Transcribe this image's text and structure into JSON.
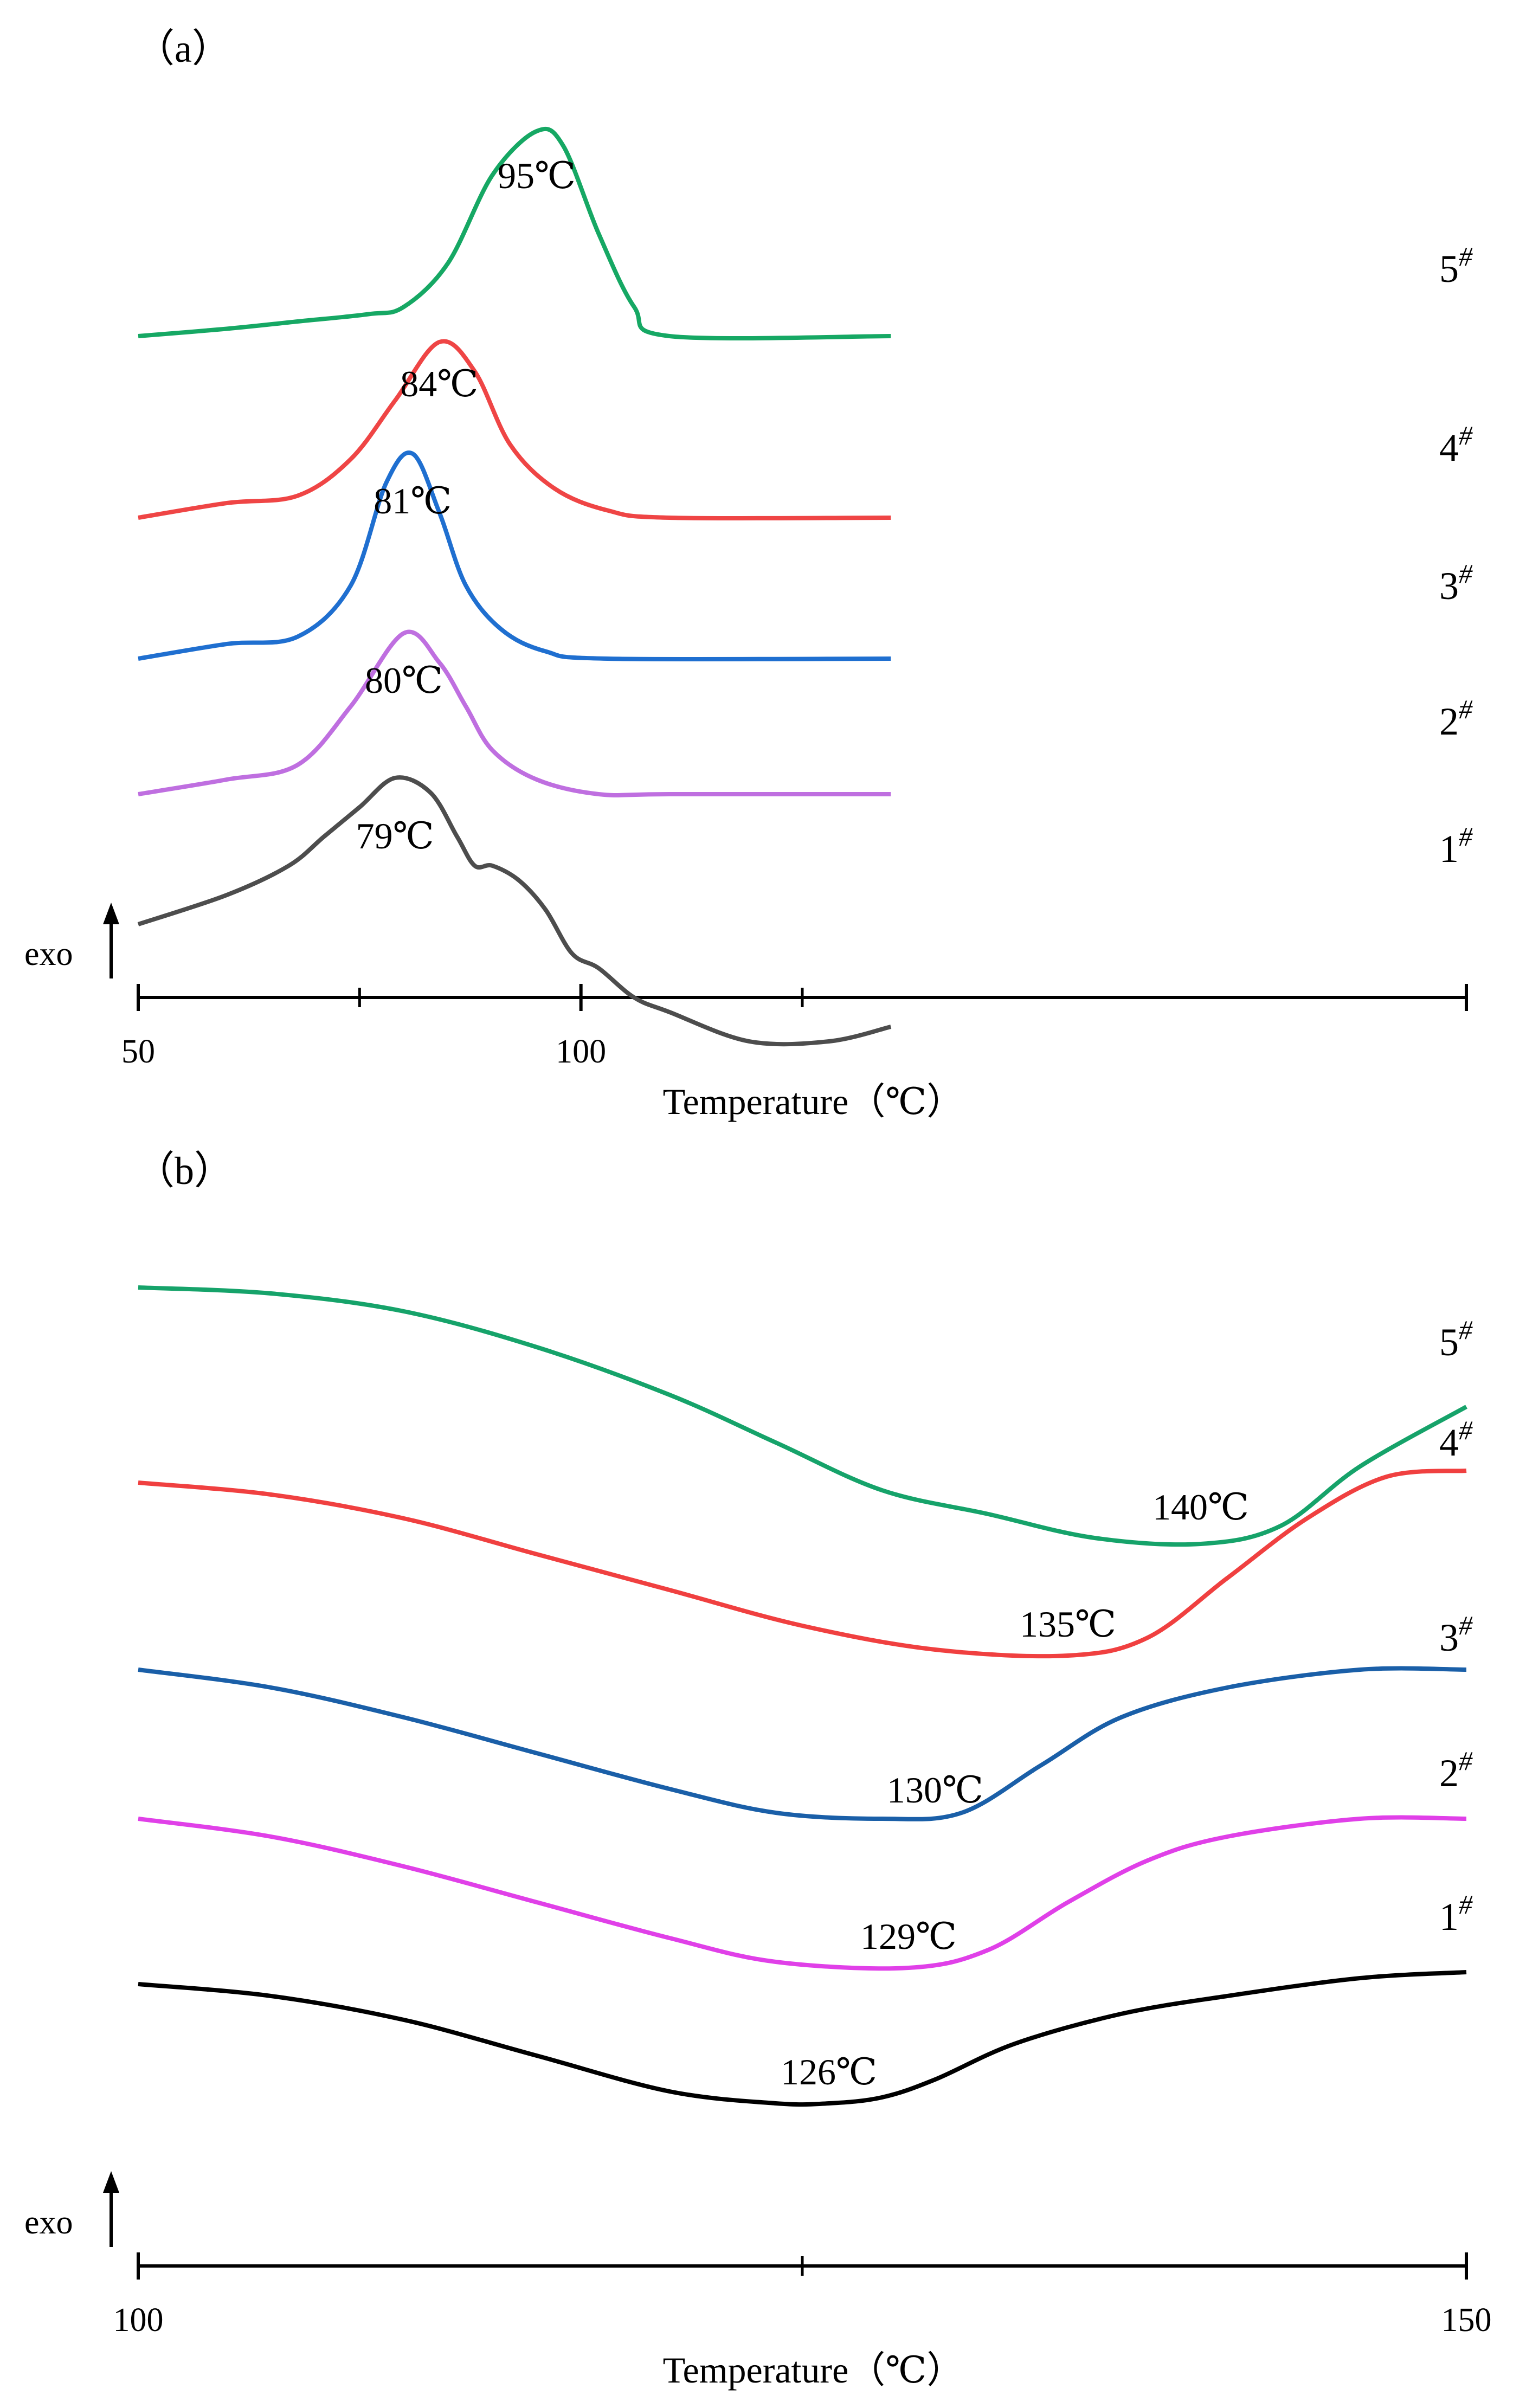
{
  "chart_data": [
    {
      "type": "line",
      "panel_label": "（a）",
      "xlabel": "Temperature（℃）",
      "ylabel": "exo",
      "xlim": [
        50,
        200
      ],
      "tick_labels": [
        {
          "value": 50,
          "label": "50"
        },
        {
          "value": 100,
          "label": "100"
        }
      ],
      "minor_ticks": [
        75,
        125
      ],
      "grid": false,
      "series": [
        {
          "name": "1#",
          "label_number": "1",
          "label_sup": "#",
          "color": "#4d4d4d",
          "baseline_offset": 0,
          "peak_label": "79℃",
          "peak_x": 79,
          "points": [
            [
              50,
              0
            ],
            [
              60,
              2
            ],
            [
              67,
              4
            ],
            [
              71,
              6
            ],
            [
              75,
              8
            ],
            [
              79,
              10
            ],
            [
              83,
              9
            ],
            [
              86,
              6
            ],
            [
              88,
              4
            ],
            [
              90,
              4
            ],
            [
              93,
              3
            ],
            [
              96,
              1
            ],
            [
              99,
              -2
            ],
            [
              102,
              -3
            ],
            [
              106,
              -5
            ],
            [
              110,
              -6
            ],
            [
              119,
              -8
            ],
            [
              128,
              -8
            ],
            [
              135,
              -7
            ]
          ]
        },
        {
          "name": "2#",
          "label_number": "2",
          "label_sup": "#",
          "color": "#bf6fe0",
          "baseline_offset": 2,
          "peak_label": "80℃",
          "peak_x": 80,
          "points": [
            [
              50,
              0
            ],
            [
              60,
              1
            ],
            [
              68,
              2
            ],
            [
              74,
              6
            ],
            [
              80,
              11
            ],
            [
              84,
              9
            ],
            [
              87,
              6
            ],
            [
              90,
              3
            ],
            [
              95,
              1
            ],
            [
              102,
              0
            ],
            [
              110,
              0
            ],
            [
              135,
              0
            ]
          ]
        },
        {
          "name": "3#",
          "label_number": "3",
          "label_sup": "#",
          "color": "#1f6fd0",
          "baseline_offset": 4,
          "peak_label": "81℃",
          "peak_x": 81,
          "points": [
            [
              50,
              0
            ],
            [
              60,
              1
            ],
            [
              68,
              1.5
            ],
            [
              74,
              5
            ],
            [
              78,
              12
            ],
            [
              81,
              14
            ],
            [
              84,
              10
            ],
            [
              87,
              5
            ],
            [
              91,
              2
            ],
            [
              96,
              0.5
            ],
            [
              103,
              0
            ],
            [
              135,
              0
            ]
          ]
        },
        {
          "name": "4#",
          "label_number": "4",
          "label_sup": "#",
          "color": "#ef4545",
          "baseline_offset": 6,
          "peak_label": "84℃",
          "peak_x": 84,
          "points": [
            [
              50,
              0
            ],
            [
              60,
              1
            ],
            [
              68,
              1.5
            ],
            [
              74,
              4
            ],
            [
              79,
              8
            ],
            [
              84,
              12
            ],
            [
              88,
              10
            ],
            [
              92,
              5
            ],
            [
              97,
              2
            ],
            [
              103,
              0.5
            ],
            [
              110,
              0
            ],
            [
              135,
              0
            ]
          ]
        },
        {
          "name": "5#",
          "label_number": "5",
          "label_sup": "#",
          "color": "#16a864",
          "baseline_offset": 8,
          "peak_label": "95℃",
          "peak_x": 95,
          "points": [
            [
              50,
              0
            ],
            [
              60,
              0.5
            ],
            [
              68,
              1
            ],
            [
              76,
              1.5
            ],
            [
              80,
              2
            ],
            [
              85,
              5
            ],
            [
              90,
              11
            ],
            [
              95,
              14
            ],
            [
              98,
              13
            ],
            [
              102,
              7
            ],
            [
              106,
              2
            ],
            [
              110,
              0
            ],
            [
              135,
              0
            ]
          ]
        }
      ]
    },
    {
      "type": "line",
      "panel_label": "（b）",
      "xlabel": "Temperature（℃）",
      "ylabel": "exo",
      "xlim": [
        100,
        150
      ],
      "tick_labels": [
        {
          "value": 100,
          "label": "100"
        },
        {
          "value": 150,
          "label": "150"
        }
      ],
      "minor_ticks": [
        125
      ],
      "grid": false,
      "series": [
        {
          "name": "1#",
          "label_number": "1",
          "label_sup": "#",
          "color": "#000000",
          "baseline_offset": 0,
          "peak_label": "126℃",
          "peak_x": 126,
          "points": [
            [
              100,
              0
            ],
            [
              105,
              -1
            ],
            [
              110,
              -3
            ],
            [
              115,
              -6
            ],
            [
              120,
              -9
            ],
            [
              124,
              -10
            ],
            [
              126,
              -10
            ],
            [
              128,
              -9.5
            ],
            [
              130,
              -8
            ],
            [
              133,
              -5
            ],
            [
              137,
              -2.5
            ],
            [
              141,
              -1
            ],
            [
              146,
              0.5
            ],
            [
              150,
              1
            ]
          ]
        },
        {
          "name": "2#",
          "label_number": "2",
          "label_sup": "#",
          "color": "#e040e8",
          "baseline_offset": 2,
          "peak_label": "129℃",
          "peak_x": 129,
          "points": [
            [
              100,
              0
            ],
            [
              105,
              -1.5
            ],
            [
              110,
              -4
            ],
            [
              115,
              -7
            ],
            [
              120,
              -10
            ],
            [
              124,
              -12
            ],
            [
              129,
              -12.5
            ],
            [
              132,
              -11
            ],
            [
              135,
              -7
            ],
            [
              138,
              -3.5
            ],
            [
              141,
              -1.5
            ],
            [
              146,
              0
            ],
            [
              150,
              0
            ]
          ]
        },
        {
          "name": "3#",
          "label_number": "3",
          "label_sup": "#",
          "color": "#1a5fa8",
          "baseline_offset": 4,
          "peak_label": "130℃",
          "peak_x": 130,
          "points": [
            [
              100,
              0
            ],
            [
              105,
              -1.5
            ],
            [
              110,
              -4
            ],
            [
              115,
              -7
            ],
            [
              120,
              -10
            ],
            [
              124,
              -12
            ],
            [
              128,
              -12.5
            ],
            [
              131,
              -12
            ],
            [
              134,
              -8
            ],
            [
              137,
              -4
            ],
            [
              141,
              -1.5
            ],
            [
              146,
              0
            ],
            [
              150,
              0
            ]
          ]
        },
        {
          "name": "4#",
          "label_number": "4",
          "label_sup": "#",
          "color": "#f04040",
          "baseline_offset": 6,
          "peak_label": "135℃",
          "peak_x": 135,
          "points": [
            [
              100,
              0
            ],
            [
              105,
              -1
            ],
            [
              110,
              -3
            ],
            [
              115,
              -6
            ],
            [
              120,
              -9
            ],
            [
              125,
              -12
            ],
            [
              130,
              -14
            ],
            [
              135,
              -14.5
            ],
            [
              138,
              -13
            ],
            [
              141,
              -8
            ],
            [
              144,
              -3
            ],
            [
              147,
              0.5
            ],
            [
              150,
              1
            ]
          ]
        },
        {
          "name": "5#",
          "label_number": "5",
          "label_sup": "#",
          "color": "#16a36a",
          "baseline_offset": 8,
          "peak_label": "140℃",
          "peak_x": 140,
          "points": [
            [
              100,
              0
            ],
            [
              105,
              -0.5
            ],
            [
              110,
              -2
            ],
            [
              115,
              -5
            ],
            [
              120,
              -9
            ],
            [
              124,
              -13
            ],
            [
              128,
              -17
            ],
            [
              132,
              -19
            ],
            [
              136,
              -21
            ],
            [
              140,
              -21.5
            ],
            [
              143,
              -20
            ],
            [
              146,
              -15
            ],
            [
              150,
              -10
            ]
          ]
        }
      ]
    }
  ]
}
